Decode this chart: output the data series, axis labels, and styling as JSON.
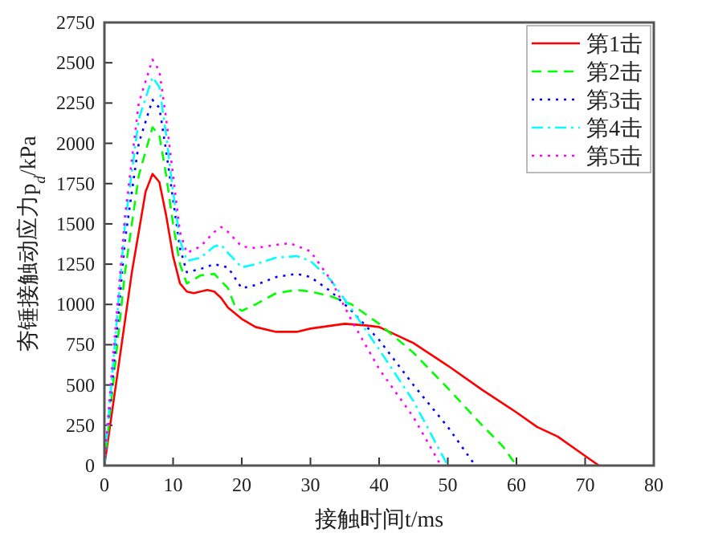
{
  "chart_data": {
    "type": "line",
    "xlabel": "接触时间t/ms",
    "ylabel": "夯锤接触动应力p$_{d}$/kPa",
    "xlim": [
      0,
      80
    ],
    "ylim": [
      0,
      2750
    ],
    "xticks": [
      0,
      10,
      20,
      30,
      40,
      50,
      60,
      70,
      80
    ],
    "yticks": [
      0,
      250,
      500,
      750,
      1000,
      1250,
      1500,
      1750,
      2000,
      2250,
      2500,
      2750
    ],
    "legend": "top right",
    "grid": false,
    "series": [
      {
        "name": "第1击",
        "color": "#ff0000",
        "line_style": "solid",
        "x": [
          0,
          2,
          4,
          6,
          7,
          8,
          9,
          10,
          11,
          12,
          13,
          15,
          16,
          17,
          18,
          20,
          22,
          25,
          28,
          30,
          35,
          38,
          40,
          43,
          45,
          50,
          55,
          60,
          63,
          66,
          70,
          72
        ],
        "values": [
          0,
          600,
          1200,
          1700,
          1810,
          1760,
          1550,
          1300,
          1130,
          1080,
          1070,
          1090,
          1080,
          1040,
          980,
          910,
          860,
          830,
          830,
          850,
          880,
          870,
          860,
          800,
          760,
          620,
          470,
          330,
          240,
          180,
          60,
          0
        ]
      },
      {
        "name": "第2击",
        "color": "#00ff00",
        "line_style": "dashed",
        "x": [
          0,
          1,
          3,
          5,
          7,
          8,
          9,
          10,
          11,
          12,
          14,
          16,
          18,
          19,
          20,
          22,
          25,
          28,
          30,
          33,
          36,
          40,
          45,
          50,
          55,
          58,
          60
        ],
        "values": [
          0,
          400,
          1200,
          1800,
          2100,
          2050,
          1800,
          1500,
          1250,
          1130,
          1180,
          1190,
          1100,
          990,
          960,
          1000,
          1070,
          1090,
          1080,
          1050,
          1000,
          880,
          700,
          480,
          250,
          120,
          0
        ]
      },
      {
        "name": "第3击",
        "color": "#0000ff",
        "line_style": "dotted",
        "x": [
          0,
          1,
          3,
          5,
          7,
          8,
          9,
          10,
          11,
          12,
          14,
          16,
          18,
          20,
          22,
          25,
          28,
          30,
          33,
          36,
          40,
          45,
          50,
          54
        ],
        "values": [
          0,
          450,
          1400,
          2000,
          2270,
          2220,
          1950,
          1650,
          1350,
          1200,
          1220,
          1250,
          1230,
          1100,
          1120,
          1170,
          1190,
          1170,
          1080,
          960,
          780,
          500,
          240,
          0
        ]
      },
      {
        "name": "第4击",
        "color": "#00ffff",
        "line_style": "dashdot",
        "x": [
          0,
          1,
          3,
          5,
          7,
          8,
          9,
          10,
          11,
          12,
          14,
          16,
          17,
          18,
          20,
          22,
          25,
          28,
          30,
          33,
          36,
          40,
          45,
          50
        ],
        "values": [
          0,
          500,
          1500,
          2150,
          2410,
          2350,
          2050,
          1700,
          1400,
          1270,
          1290,
          1360,
          1370,
          1320,
          1230,
          1250,
          1290,
          1300,
          1270,
          1150,
          970,
          720,
          400,
          0
        ]
      },
      {
        "name": "第5击",
        "color": "#ff00ff",
        "line_style": "dotted",
        "x": [
          0,
          1,
          3,
          5,
          7,
          8,
          9,
          10,
          11,
          12,
          14,
          16,
          17,
          18,
          20,
          22,
          25,
          27,
          30,
          33,
          36,
          40,
          45,
          49
        ],
        "values": [
          0,
          550,
          1550,
          2250,
          2520,
          2450,
          2150,
          1800,
          1450,
          1320,
          1360,
          1450,
          1480,
          1450,
          1360,
          1350,
          1370,
          1380,
          1330,
          1150,
          900,
          600,
          300,
          0
        ]
      }
    ]
  }
}
